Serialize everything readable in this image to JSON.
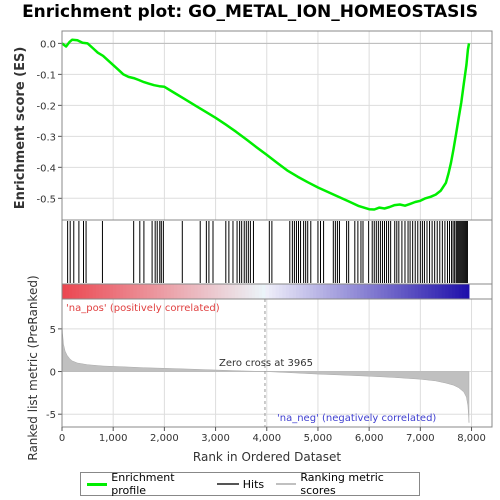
{
  "chart_data": {
    "type": "line",
    "title": "Enrichment plot: GO_METAL_ION_HOMEOSTASIS",
    "xlabel": "Rank in Ordered Dataset",
    "top_ylabel": "Enrichment score (ES)",
    "bottom_ylabel": "Ranked list metric (PreRanked)",
    "x_range": [
      0,
      8400
    ],
    "top_ylim": [
      -0.57,
      0.04
    ],
    "bottom_ylim": [
      -6.5,
      8.5
    ],
    "x_ticks": [
      0,
      1000,
      2000,
      3000,
      4000,
      5000,
      6000,
      7000,
      8000
    ],
    "x_tick_labels": [
      "0",
      "1,000",
      "2,000",
      "3,000",
      "4,000",
      "5,000",
      "6,000",
      "7,000",
      "8,000"
    ],
    "top_y_ticks": [
      0.0,
      -0.1,
      -0.2,
      -0.3,
      -0.4,
      -0.5
    ],
    "top_y_tick_labels": [
      "0.0",
      "-0.1",
      "-0.2",
      "-0.3",
      "-0.4",
      "-0.5"
    ],
    "bottom_y_ticks": [
      5,
      0,
      -5
    ],
    "bottom_y_tick_labels": [
      "5",
      "0",
      "-5"
    ],
    "grid": true,
    "n_genes": 7950,
    "zero_cross": 3965,
    "zero_cross_label": "Zero cross at 3965",
    "pos_label": "'na_pos' (positively correlated)",
    "neg_label": "'na_neg' (negatively correlated)",
    "enrichment_profile": {
      "name": "Enrichment profile",
      "color": "#00ee00",
      "x": [
        0,
        80,
        150,
        200,
        300,
        400,
        500,
        600,
        700,
        800,
        900,
        1000,
        1100,
        1200,
        1300,
        1400,
        1500,
        1600,
        1700,
        1800,
        1900,
        2000,
        2200,
        2400,
        2600,
        2800,
        3000,
        3200,
        3400,
        3600,
        3800,
        4000,
        4200,
        4400,
        4600,
        4800,
        5000,
        5200,
        5400,
        5600,
        5800,
        6000,
        6100,
        6200,
        6300,
        6400,
        6500,
        6600,
        6700,
        6800,
        6900,
        7000,
        7100,
        7200,
        7300,
        7400,
        7500,
        7550,
        7600,
        7650,
        7700,
        7750,
        7800,
        7850,
        7900,
        7930,
        7950
      ],
      "y": [
        0.0,
        -0.01,
        0.005,
        0.012,
        0.01,
        0.002,
        0.0,
        -0.015,
        -0.03,
        -0.04,
        -0.055,
        -0.07,
        -0.085,
        -0.1,
        -0.108,
        -0.112,
        -0.118,
        -0.125,
        -0.13,
        -0.135,
        -0.138,
        -0.14,
        -0.16,
        -0.18,
        -0.2,
        -0.22,
        -0.24,
        -0.262,
        -0.285,
        -0.31,
        -0.335,
        -0.36,
        -0.385,
        -0.41,
        -0.43,
        -0.448,
        -0.465,
        -0.48,
        -0.495,
        -0.51,
        -0.525,
        -0.535,
        -0.536,
        -0.53,
        -0.533,
        -0.528,
        -0.522,
        -0.52,
        -0.524,
        -0.518,
        -0.512,
        -0.508,
        -0.5,
        -0.495,
        -0.488,
        -0.475,
        -0.45,
        -0.42,
        -0.385,
        -0.34,
        -0.29,
        -0.24,
        -0.19,
        -0.13,
        -0.07,
        -0.02,
        0.0
      ]
    },
    "hits": {
      "name": "Hits",
      "color": "#000000",
      "positions": [
        110,
        160,
        230,
        330,
        420,
        470,
        790,
        1400,
        1520,
        1600,
        1760,
        1820,
        1860,
        1910,
        1940,
        1980,
        2350,
        2700,
        2820,
        2870,
        2950,
        3200,
        3260,
        3340,
        3420,
        3470,
        3510,
        3560,
        3600,
        3640,
        3680,
        3740,
        4050,
        4100,
        4450,
        4500,
        4540,
        4580,
        4620,
        4660,
        4720,
        4760,
        4800,
        4860,
        5000,
        5050,
        5110,
        5300,
        5340,
        5380,
        5420,
        5560,
        5600,
        5720,
        5780,
        5840,
        5880,
        5990,
        6060,
        6100,
        6140,
        6180,
        6220,
        6260,
        6300,
        6340,
        6380,
        6420,
        6500,
        6540,
        6580,
        6640,
        6700,
        6760,
        6800,
        6850,
        6900,
        6950,
        7000,
        7040,
        7080,
        7130,
        7180,
        7230,
        7280,
        7330,
        7380,
        7430,
        7480,
        7530,
        7570,
        7610,
        7640,
        7670,
        7700,
        7720,
        7740,
        7760,
        7780,
        7800,
        7820,
        7840,
        7860,
        7880,
        7900,
        7920
      ]
    },
    "ranking_metric": {
      "name": "Ranking metric scores",
      "color": "#c0c0c0",
      "x": [
        0,
        10,
        30,
        60,
        100,
        150,
        200,
        300,
        500,
        800,
        1200,
        1600,
        2000,
        2500,
        3000,
        3500,
        3965,
        4500,
        5000,
        5500,
        6000,
        6500,
        7000,
        7300,
        7500,
        7650,
        7750,
        7850,
        7900,
        7930,
        7950
      ],
      "y": [
        6.0,
        4.5,
        3.2,
        2.4,
        1.9,
        1.5,
        1.25,
        1.0,
        0.8,
        0.65,
        0.55,
        0.45,
        0.38,
        0.28,
        0.18,
        0.08,
        0.0,
        -0.15,
        -0.3,
        -0.42,
        -0.55,
        -0.7,
        -0.9,
        -1.1,
        -1.35,
        -1.6,
        -1.9,
        -2.4,
        -3.0,
        -4.0,
        -6.0
      ]
    }
  },
  "legend": {
    "items": [
      {
        "label": "Enrichment profile",
        "color": "#00ee00"
      },
      {
        "label": "Hits",
        "color": "#555555"
      },
      {
        "label": "Ranking metric scores",
        "color": "#c0c0c0"
      }
    ]
  }
}
